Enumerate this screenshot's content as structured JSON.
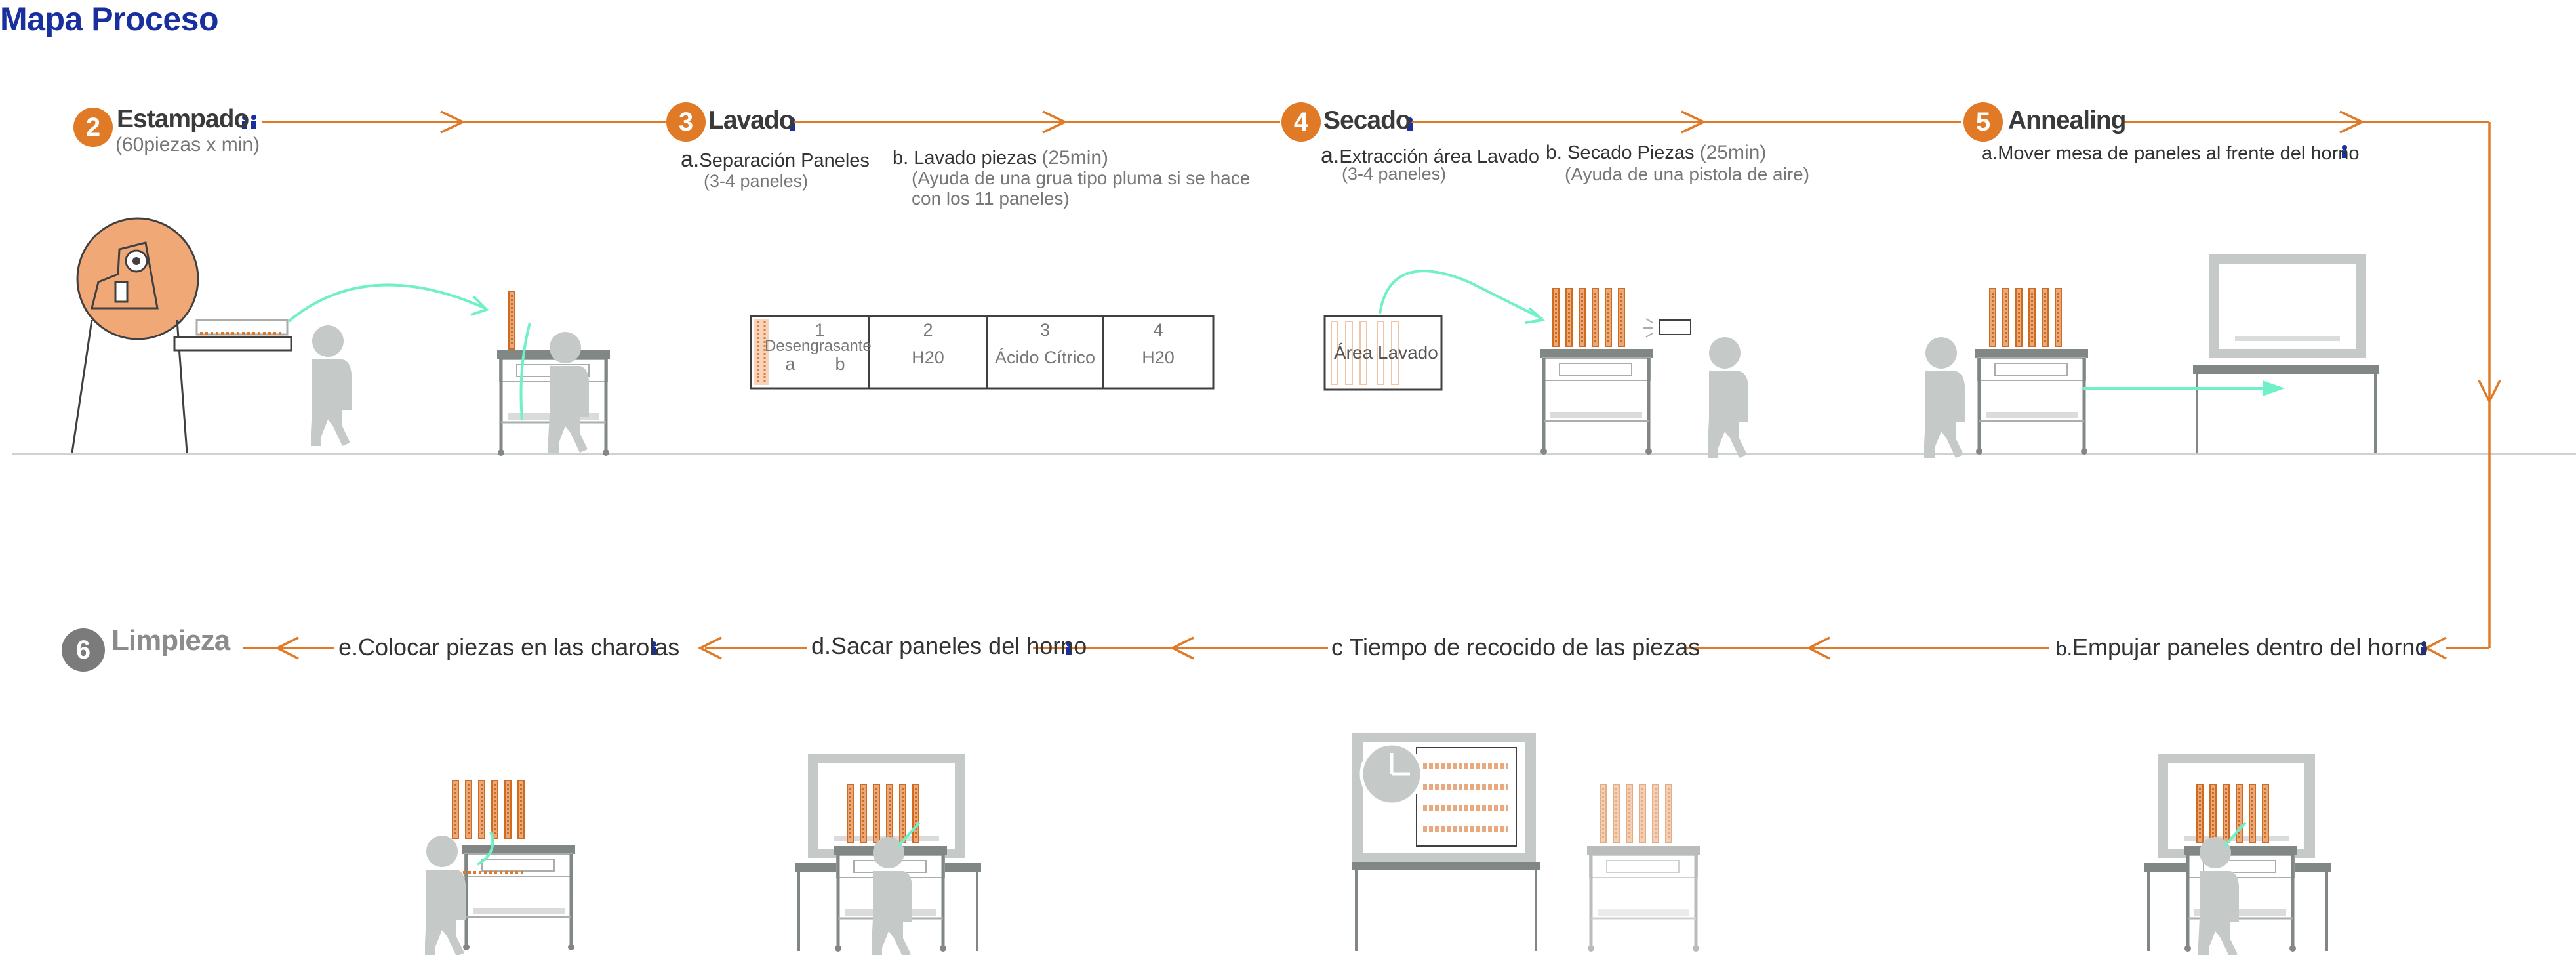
{
  "title": "Mapa Proceso",
  "steps": [
    {
      "number": "2",
      "name": "Estampado",
      "sub": "(60piezas x min)"
    },
    {
      "number": "3",
      "name": "Lavado"
    },
    {
      "number": "4",
      "name": "Secado"
    },
    {
      "number": "5",
      "name": "Annealing"
    },
    {
      "number": "6",
      "name": "Limpieza"
    }
  ],
  "lavado": {
    "a_letter": "a.",
    "a_label": "Separación Paneles",
    "a_note": "(3-4 paneles)",
    "b_letter": "b.",
    "b_label": "Lavado piezas",
    "b_time": "(25min)",
    "b_note": "(Ayuda de una grua tipo pluma si se hace con los 11 paneles)",
    "tanks": [
      {
        "num": "1",
        "name": "Desengrasante",
        "sub_a": "a",
        "sub_b": "b"
      },
      {
        "num": "2",
        "name": "H20"
      },
      {
        "num": "3",
        "name": "Ácido Cítrico"
      },
      {
        "num": "4",
        "name": "H20"
      }
    ]
  },
  "secado": {
    "a_letter": "a.",
    "a_label": "Extracción área Lavado",
    "a_note": "(3-4 paneles)",
    "area_label": "Área Lavado",
    "b_letter": "b.",
    "b_label": "Secado Piezas",
    "b_time": "(25min)",
    "b_note": "(Ayuda de una pistola de aire)"
  },
  "annealing": {
    "a_letter": "a.",
    "a_label": "Mover mesa de paneles al frente del horno",
    "b_letter": "b.",
    "b_label": "Empujar paneles dentro del horno",
    "c_label": "c Tiempo de recocido de las piezas",
    "d_label": "d.Sacar paneles del horno"
  },
  "limpieza": {
    "e_label": "e.Colocar piezas en las charolas"
  },
  "colors": {
    "title": "#1a2f9e",
    "accent": "#e07a26",
    "arrow_teal": "#6ff0c8",
    "figure": "#c5c9c7",
    "icon_person": "#1a2f9e"
  },
  "icons": [
    "people-icon",
    "person-icon",
    "clock-icon",
    "stamping-press",
    "cart",
    "oven",
    "air-gun",
    "wash-tanks"
  ]
}
